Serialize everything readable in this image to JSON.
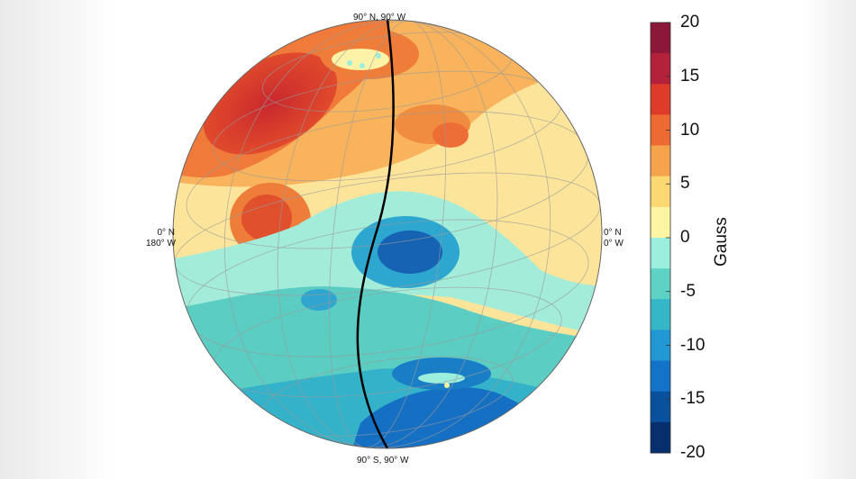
{
  "map": {
    "label_top": "90° N, 90° W",
    "label_bottom": "90° S, 90° W",
    "label_left_1": "0° N",
    "label_left_2": "180° W",
    "label_right_1": "0° N",
    "label_right_2": "0° W"
  },
  "colorbar": {
    "title": "Gauss",
    "ticks": [
      "20",
      "15",
      "10",
      "5",
      "0",
      "-5",
      "-10",
      "-15",
      "-20"
    ],
    "colors": [
      "#8c1839",
      "#b3213a",
      "#dd3c2a",
      "#ee6a33",
      "#f6a44c",
      "#fcd873",
      "#fdf5a2",
      "#9ceedd",
      "#5fd2c6",
      "#36b7c7",
      "#2197d4",
      "#1373c9",
      "#0a519d",
      "#082f6d"
    ]
  }
}
